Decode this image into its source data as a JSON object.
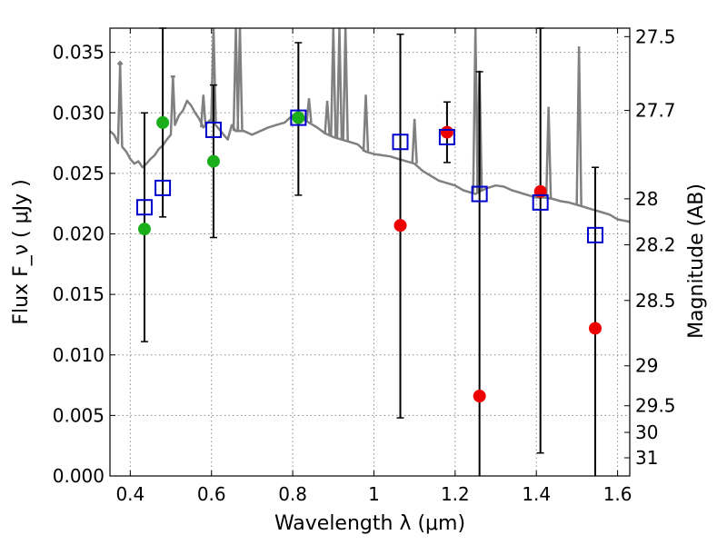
{
  "chart_data": {
    "type": "scatter",
    "xlabel": "Wavelength  λ (μm)",
    "ylabel": "Flux  F_ν  ( μJy )",
    "y2label": "Magnitude (AB)",
    "xlim": [
      0.35,
      1.63
    ],
    "ylim": [
      0.0,
      0.037
    ],
    "grid": true,
    "x_ticks": [
      0.4,
      0.6,
      0.8,
      1.0,
      1.2,
      1.4,
      1.6
    ],
    "x_tick_labels": [
      "0.4",
      "0.6",
      "0.8",
      "1",
      "1.2",
      "1.4",
      "1.6"
    ],
    "y_ticks": [
      0.0,
      0.005,
      0.01,
      0.015,
      0.02,
      0.025,
      0.03,
      0.035
    ],
    "y_tick_labels": [
      "0.000",
      "0.005",
      "0.010",
      "0.015",
      "0.020",
      "0.025",
      "0.030",
      "0.035"
    ],
    "y2_ticks": [
      {
        "label": "27.5",
        "flux": 0.0363
      },
      {
        "label": "27.7",
        "flux": 0.0302
      },
      {
        "label": "28",
        "flux": 0.0229
      },
      {
        "label": "28.2",
        "flux": 0.0191
      },
      {
        "label": "28.5",
        "flux": 0.0145
      },
      {
        "label": "29",
        "flux": 0.0091
      },
      {
        "label": "29.5",
        "flux": 0.0058
      },
      {
        "label": "30",
        "flux": 0.0036
      },
      {
        "label": "31",
        "flux": 0.0015
      }
    ],
    "series": [
      {
        "kind": "model_spectrum",
        "color": "#808080",
        "x": [
          0.35,
          0.36,
          0.37,
          0.375,
          0.38,
          0.39,
          0.4,
          0.41,
          0.42,
          0.43,
          0.44,
          0.45,
          0.46,
          0.47,
          0.48,
          0.49,
          0.5,
          0.505,
          0.51,
          0.52,
          0.53,
          0.54,
          0.55,
          0.56,
          0.57,
          0.58,
          0.59,
          0.6,
          0.61,
          0.62,
          0.63,
          0.64,
          0.65,
          0.66,
          0.67,
          0.68,
          0.7,
          0.72,
          0.74,
          0.76,
          0.78,
          0.8,
          0.82,
          0.84,
          0.86,
          0.88,
          0.9,
          0.92,
          0.94,
          0.96,
          0.98,
          1.0,
          1.02,
          1.04,
          1.06,
          1.08,
          1.1,
          1.12,
          1.14,
          1.16,
          1.18,
          1.2,
          1.22,
          1.24,
          1.25,
          1.26,
          1.28,
          1.3,
          1.32,
          1.34,
          1.36,
          1.38,
          1.4,
          1.42,
          1.44,
          1.46,
          1.48,
          1.5,
          1.52,
          1.54,
          1.56,
          1.58,
          1.6,
          1.63
        ],
        "y": [
          0.0285,
          0.0282,
          0.0275,
          0.034,
          0.0272,
          0.0268,
          0.0262,
          0.0258,
          0.026,
          0.0255,
          0.0258,
          0.0262,
          0.0265,
          0.027,
          0.0273,
          0.0278,
          0.0282,
          0.033,
          0.029,
          0.0298,
          0.0302,
          0.031,
          0.0306,
          0.03,
          0.0295,
          0.0288,
          0.0292,
          0.0295,
          0.029,
          0.0286,
          0.0282,
          0.0278,
          0.029,
          0.0285,
          0.0285,
          0.0285,
          0.0282,
          0.0285,
          0.0288,
          0.029,
          0.0292,
          0.0298,
          0.0296,
          0.0292,
          0.0288,
          0.0283,
          0.028,
          0.0278,
          0.0276,
          0.0274,
          0.0268,
          0.0266,
          0.0265,
          0.0264,
          0.0262,
          0.026,
          0.0258,
          0.0252,
          0.0248,
          0.0244,
          0.0242,
          0.024,
          0.0236,
          0.0234,
          0.0233,
          0.0235,
          0.0238,
          0.024,
          0.0239,
          0.0236,
          0.0234,
          0.0232,
          0.023,
          0.023,
          0.0229,
          0.0227,
          0.0226,
          0.0224,
          0.0222,
          0.022,
          0.0218,
          0.0216,
          0.0212,
          0.021
        ],
        "spikes": [
          {
            "x": 0.375,
            "y": 0.0342
          },
          {
            "x": 0.505,
            "y": 0.033
          },
          {
            "x": 0.58,
            "y": 0.0315
          },
          {
            "x": 0.605,
            "y": 0.037
          },
          {
            "x": 0.66,
            "y": 0.037
          },
          {
            "x": 0.67,
            "y": 0.037
          },
          {
            "x": 0.84,
            "y": 0.0312
          },
          {
            "x": 0.885,
            "y": 0.031
          },
          {
            "x": 0.9,
            "y": 0.037
          },
          {
            "x": 0.915,
            "y": 0.037
          },
          {
            "x": 0.93,
            "y": 0.037
          },
          {
            "x": 0.98,
            "y": 0.0315
          },
          {
            "x": 1.1,
            "y": 0.0295
          },
          {
            "x": 1.25,
            "y": 0.037
          },
          {
            "x": 1.26,
            "y": 0.0335
          },
          {
            "x": 1.43,
            "y": 0.0305
          },
          {
            "x": 1.505,
            "y": 0.0355
          }
        ]
      },
      {
        "kind": "green_points",
        "color": "#1aaf1a",
        "points": [
          {
            "x": 0.435,
            "y": 0.0204
          },
          {
            "x": 0.48,
            "y": 0.0292
          },
          {
            "x": 0.605,
            "y": 0.026
          },
          {
            "x": 0.814,
            "y": 0.0296
          }
        ]
      },
      {
        "kind": "red_points",
        "color": "#ee0000",
        "points": [
          {
            "x": 1.065,
            "y": 0.0207
          },
          {
            "x": 1.18,
            "y": 0.0284
          },
          {
            "x": 1.26,
            "y": 0.0066
          },
          {
            "x": 1.41,
            "y": 0.0235
          },
          {
            "x": 1.545,
            "y": 0.0122
          }
        ]
      },
      {
        "kind": "blue_open_squares",
        "color": "#0000cc",
        "points": [
          {
            "x": 0.435,
            "y": 0.0222
          },
          {
            "x": 0.48,
            "y": 0.0238
          },
          {
            "x": 0.605,
            "y": 0.0286
          },
          {
            "x": 0.814,
            "y": 0.0296
          },
          {
            "x": 1.065,
            "y": 0.0276
          },
          {
            "x": 1.18,
            "y": 0.028
          },
          {
            "x": 1.26,
            "y": 0.0233
          },
          {
            "x": 1.41,
            "y": 0.0226
          },
          {
            "x": 1.545,
            "y": 0.0199
          }
        ]
      },
      {
        "kind": "error_bars",
        "color": "#000000",
        "bars": [
          {
            "x": 0.435,
            "low": 0.0111,
            "high": 0.03
          },
          {
            "x": 0.48,
            "low": 0.0214,
            "high": 0.037
          },
          {
            "x": 0.605,
            "low": 0.0197,
            "high": 0.0323
          },
          {
            "x": 0.814,
            "low": 0.0232,
            "high": 0.0358
          },
          {
            "x": 1.065,
            "low": 0.0048,
            "high": 0.0365
          },
          {
            "x": 1.18,
            "low": 0.0259,
            "high": 0.0309
          },
          {
            "x": 1.26,
            "low": 0.0,
            "high": 0.0334
          },
          {
            "x": 1.41,
            "low": 0.0019,
            "high": 0.037
          },
          {
            "x": 1.545,
            "low": 0.0,
            "high": 0.0255
          }
        ]
      }
    ]
  }
}
